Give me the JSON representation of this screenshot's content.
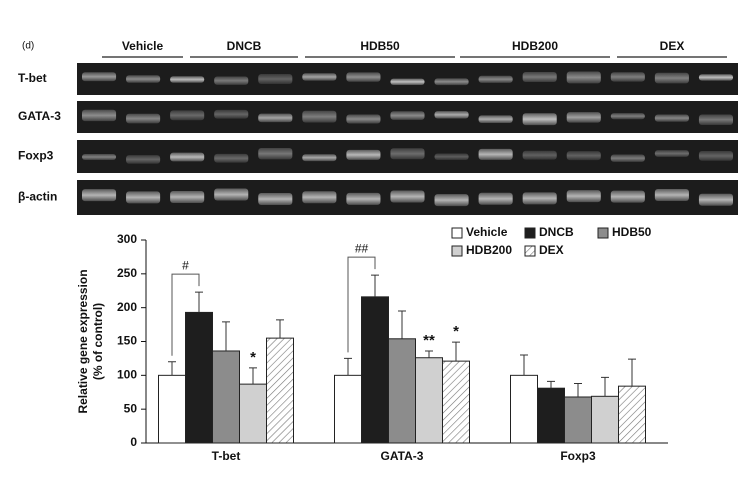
{
  "panel_label": "(d)",
  "gel": {
    "groups": [
      "Vehicle",
      "DNCB",
      "HDB50",
      "HDB200",
      "DEX"
    ],
    "rows": [
      "T-bet",
      "GATA-3",
      "Foxp3",
      "β-actin"
    ]
  },
  "chart_data": {
    "type": "bar",
    "y_label": [
      "Relative gene expression",
      "(% of control)"
    ],
    "categories": [
      "T-bet",
      "GATA-3",
      "Foxp3"
    ],
    "comparison_labels": [
      "#",
      "##",
      null
    ],
    "series": [
      {
        "name": "Vehicle",
        "color": "#ffffff",
        "values": [
          100,
          100,
          100
        ],
        "errors": [
          20,
          25,
          30
        ]
      },
      {
        "name": "DNCB",
        "color": "#1e1e1e",
        "values": [
          193,
          216,
          81
        ],
        "errors": [
          30,
          32,
          10
        ]
      },
      {
        "name": "HDB50",
        "color": "#8c8c8c",
        "values": [
          136,
          154,
          68
        ],
        "errors": [
          43,
          41,
          20
        ]
      },
      {
        "name": "HDB200",
        "color": "#d0d0d0",
        "values": [
          87,
          126,
          69
        ],
        "errors": [
          24,
          10,
          28
        ],
        "significance": [
          "*",
          "**",
          null
        ]
      },
      {
        "name": "DEX",
        "color": "#ffffff",
        "hatch": true,
        "values": [
          155,
          121,
          84
        ],
        "errors": [
          27,
          28,
          40
        ],
        "significance": [
          null,
          "*",
          null
        ]
      }
    ],
    "ylim": [
      0,
      300
    ],
    "yticks": [
      0,
      50,
      100,
      150,
      200,
      250,
      300
    ],
    "legend": "upper right",
    "grid": false
  }
}
